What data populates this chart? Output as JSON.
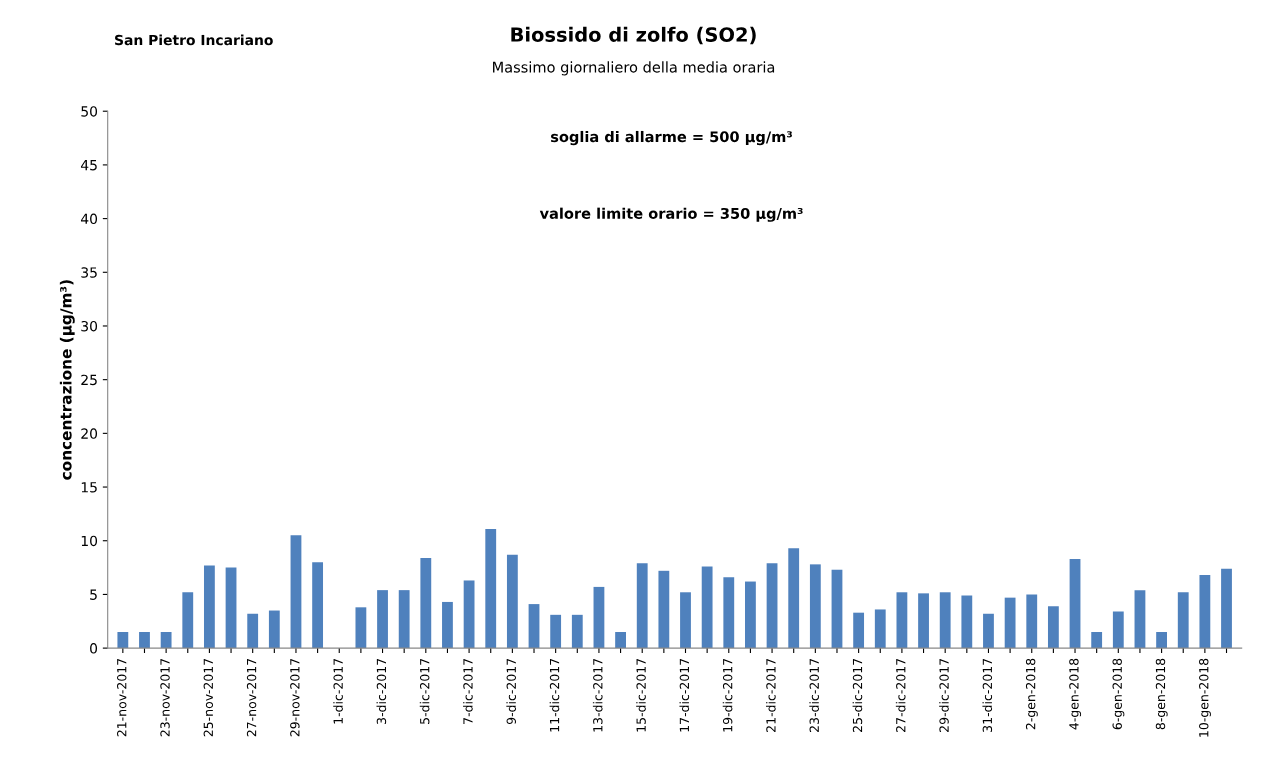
{
  "chart_data": {
    "type": "bar",
    "title": "Biossido di zolfo (SO2)",
    "subtitle": "Massimo giornaliero della media oraria",
    "ylabel": "concentrazione (µg/m³)",
    "annotations": [
      "San Pietro Incariano",
      "soglia di allarme = 500 µg/m³",
      "valore limite orario = 350 µg/m³"
    ],
    "categories": [
      "21-nov-2017",
      null,
      "23-nov-2017",
      null,
      "25-nov-2017",
      null,
      "27-nov-2017",
      null,
      "29-nov-2017",
      null,
      "1-dic-2017",
      null,
      "3-dic-2017",
      null,
      "5-dic-2017",
      null,
      "7-dic-2017",
      null,
      "9-dic-2017",
      null,
      "11-dic-2017",
      null,
      "13-dic-2017",
      null,
      "15-dic-2017",
      null,
      "17-dic-2017",
      null,
      "19-dic-2017",
      null,
      "21-dic-2017",
      null,
      "23-dic-2017",
      null,
      "25-dic-2017",
      null,
      "27-dic-2017",
      null,
      "29-dic-2017",
      null,
      "31-dic-2017",
      null,
      "2-gen-2018",
      null,
      "4-gen-2018",
      null,
      "6-gen-2018",
      null,
      "8-gen-2018",
      null,
      "10-gen-2018",
      null
    ],
    "values": [
      1.5,
      1.5,
      1.5,
      5.2,
      7.7,
      7.5,
      3.2,
      3.5,
      10.5,
      8.0,
      0,
      3.8,
      5.4,
      5.4,
      8.4,
      4.3,
      6.3,
      11.1,
      8.7,
      4.1,
      3.1,
      3.1,
      5.7,
      1.5,
      7.9,
      7.2,
      5.2,
      7.6,
      6.6,
      6.2,
      7.9,
      9.3,
      7.8,
      7.3,
      3.3,
      3.6,
      5.2,
      5.1,
      5.2,
      4.9,
      3.2,
      4.7,
      5.0,
      3.9,
      8.3,
      1.5,
      3.4,
      5.4,
      1.5,
      5.2,
      6.8,
      7.4
    ],
    "color": "#4f81bd",
    "ylim": [
      0,
      50
    ],
    "yticks": [
      0,
      5,
      10,
      15,
      20,
      25,
      30,
      35,
      40,
      45,
      50
    ],
    "grid": false,
    "legend": false
  }
}
